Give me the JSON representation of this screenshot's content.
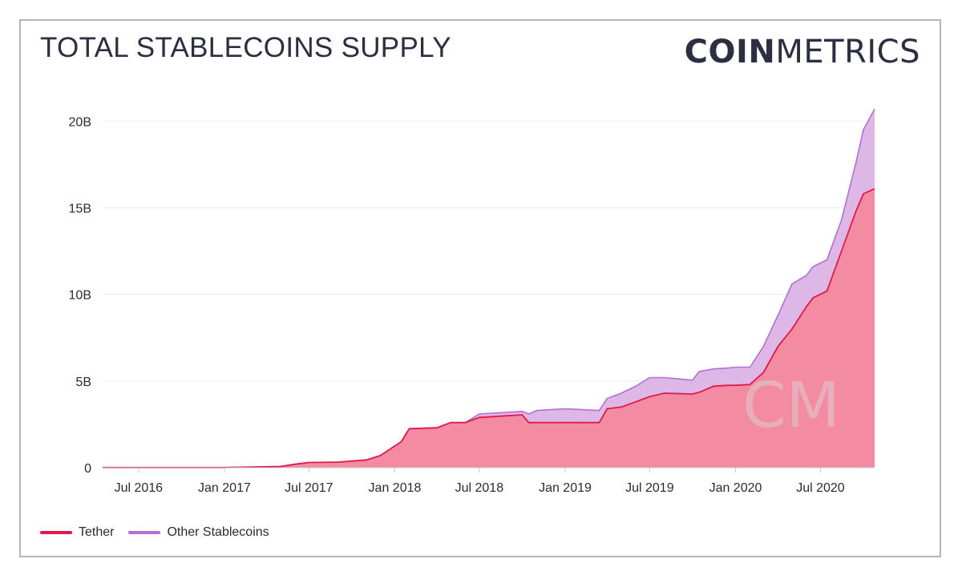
{
  "header": {
    "title": "TOTAL STABLECOINS SUPPLY",
    "brand_bold": "COIN",
    "brand_light": "METRICS"
  },
  "watermark": "CM",
  "chart_data": {
    "type": "area",
    "stacked": true,
    "title": "TOTAL STABLECOINS SUPPLY",
    "xlabel": "",
    "ylabel": "",
    "xlim": [
      "2016-04-15",
      "2020-10-25"
    ],
    "ylim": [
      0,
      22000000000
    ],
    "yticks": [
      0,
      5000000000,
      10000000000,
      15000000000,
      20000000000
    ],
    "ytick_labels": [
      "0",
      "5B",
      "10B",
      "15B",
      "20B"
    ],
    "xticks": [
      "2016-07-01",
      "2017-01-01",
      "2017-07-01",
      "2018-01-01",
      "2018-07-01",
      "2019-01-01",
      "2019-07-01",
      "2020-01-01",
      "2020-07-01"
    ],
    "xtick_labels": [
      "Jul 2016",
      "Jan 2017",
      "Jul 2017",
      "Jan 2018",
      "Jul 2018",
      "Jan 2019",
      "Jul 2019",
      "Jan 2020",
      "Jul 2020"
    ],
    "grid": "horizontal",
    "legend_position": "bottom-left",
    "colors": {
      "tether": "#e0194b",
      "tether_fill": "#f2869e",
      "other": "#b36ed1",
      "other_fill": "#ddb8e6"
    },
    "x": [
      "2016-04-15",
      "2016-07-01",
      "2017-01-01",
      "2017-05-01",
      "2017-06-01",
      "2017-07-01",
      "2017-09-01",
      "2017-11-01",
      "2017-12-01",
      "2018-01-15",
      "2018-02-01",
      "2018-04-01",
      "2018-05-01",
      "2018-06-01",
      "2018-07-01",
      "2018-10-01",
      "2018-10-15",
      "2018-11-01",
      "2019-01-01",
      "2019-03-15",
      "2019-04-01",
      "2019-05-01",
      "2019-06-01",
      "2019-07-01",
      "2019-08-01",
      "2019-10-01",
      "2019-10-15",
      "2019-11-15",
      "2019-12-15",
      "2020-01-01",
      "2020-02-01",
      "2020-03-01",
      "2020-04-01",
      "2020-05-01",
      "2020-06-01",
      "2020-06-15",
      "2020-07-15",
      "2020-08-15",
      "2020-09-15",
      "2020-10-01",
      "2020-10-25"
    ],
    "series": [
      {
        "name": "Tether",
        "values": [
          0.01,
          0.01,
          0.01,
          0.07,
          0.2,
          0.3,
          0.32,
          0.45,
          0.7,
          1.5,
          2.25,
          2.3,
          2.6,
          2.6,
          2.9,
          3.05,
          2.6,
          2.6,
          2.6,
          2.6,
          3.4,
          3.5,
          3.8,
          4.1,
          4.3,
          4.25,
          4.35,
          4.7,
          4.75,
          4.75,
          4.8,
          5.5,
          7.0,
          8.0,
          9.3,
          9.8,
          10.2,
          12.5,
          14.8,
          15.8,
          16.1
        ]
      },
      {
        "name": "Other Stablecoins",
        "values": [
          0,
          0,
          0,
          0,
          0,
          0,
          0,
          0,
          0,
          0,
          0,
          0,
          0,
          0,
          0.2,
          0.2,
          0.5,
          0.7,
          0.8,
          0.7,
          0.6,
          0.8,
          0.9,
          1.1,
          0.9,
          0.8,
          1.2,
          1.0,
          1.0,
          1.05,
          1.0,
          1.5,
          1.8,
          2.6,
          1.8,
          1.8,
          1.8,
          1.8,
          2.8,
          3.7,
          4.6
        ]
      }
    ],
    "value_unit": "billions"
  },
  "legend": {
    "items": [
      {
        "label": "Tether"
      },
      {
        "label": "Other Stablecoins"
      }
    ]
  }
}
